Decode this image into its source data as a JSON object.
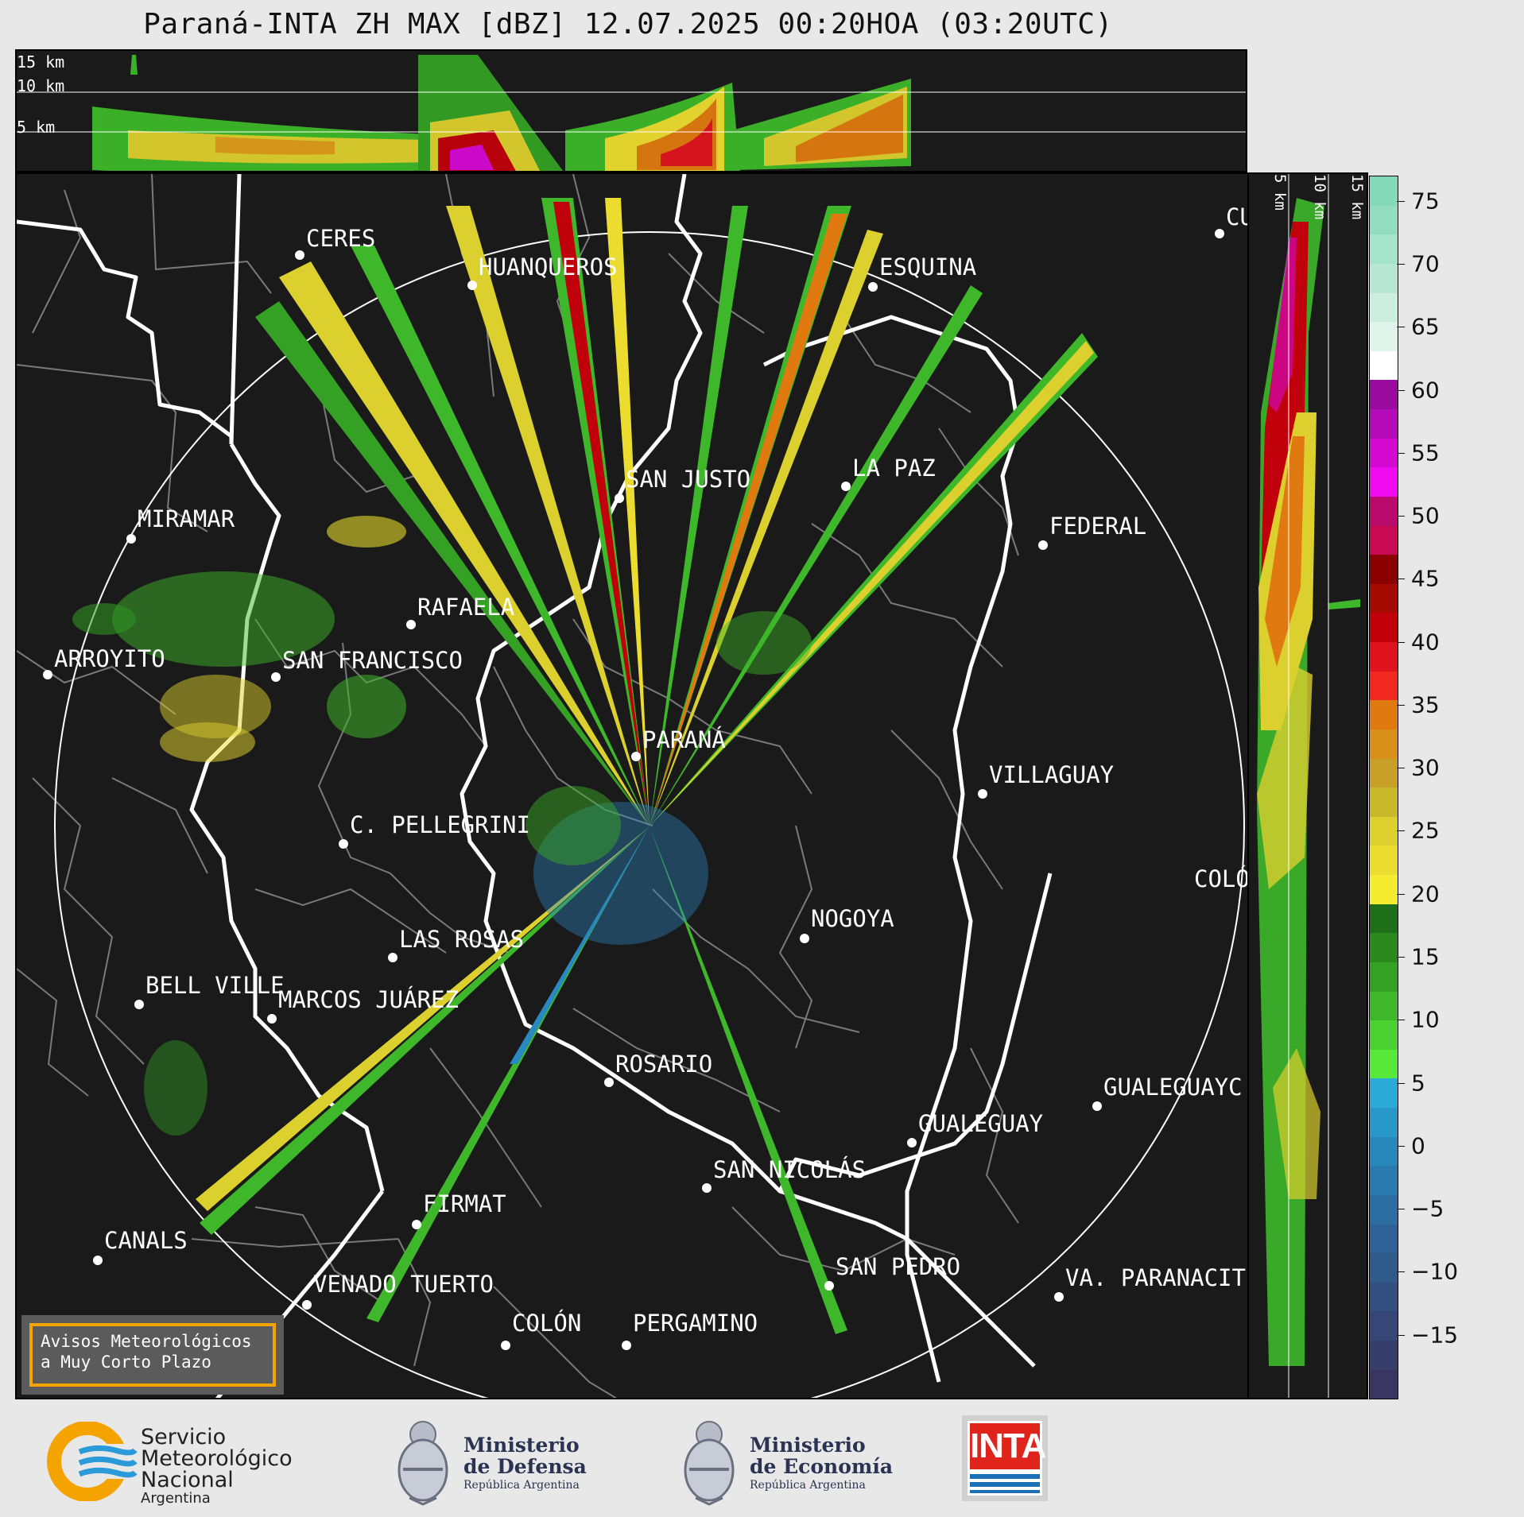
{
  "title": "Paraná-INTA ZH MAX [dBZ] 12.07.2025 00:20HOA (03:20UTC)",
  "top_panel": {
    "altitude_labels": [
      "15 km",
      "10 km",
      "5 km"
    ]
  },
  "side_panel": {
    "altitude_labels": [
      "5 km",
      "10 km",
      "15 km"
    ]
  },
  "colorbar": {
    "unit": "dBZ",
    "ticks": [
      "75",
      "70",
      "65",
      "60",
      "55",
      "50",
      "45",
      "40",
      "35",
      "30",
      "25",
      "20",
      "15",
      "10",
      "5",
      "0",
      "−5",
      "−10",
      "−15"
    ],
    "tick_values": [
      75,
      70,
      65,
      60,
      55,
      50,
      45,
      40,
      35,
      30,
      25,
      20,
      15,
      10,
      5,
      0,
      -5,
      -10,
      -15
    ],
    "range": [
      -20,
      77
    ],
    "colors_top_to_bottom": [
      "#84d9b8",
      "#92ddc0",
      "#a5e3cb",
      "#b8e8d5",
      "#cbeee0",
      "#dff4ea",
      "#ffffff",
      "#9a0a9e",
      "#b40ab8",
      "#d40ad2",
      "#f00aee",
      "#b80a6a",
      "#c80a52",
      "#8a0000",
      "#a40a00",
      "#c0000a",
      "#e0141e",
      "#f0281e",
      "#e07a10",
      "#d8901a",
      "#c8a028",
      "#c8b82a",
      "#dcd02e",
      "#ecdc30",
      "#f4ec30",
      "#1f6e1a",
      "#2a8a1e",
      "#34a024",
      "#3eb82a",
      "#4ad030",
      "#58e838",
      "#2aaad8",
      "#2898c8",
      "#2888ba",
      "#2a7aae",
      "#2c6ea2",
      "#2e6296",
      "#305a8a",
      "#334f80",
      "#364676",
      "#383e6c",
      "#3a3664"
    ]
  },
  "cities": [
    {
      "name": "CERES"
    },
    {
      "name": "HUANQUEROS"
    },
    {
      "name": "ESQUINA"
    },
    {
      "name": "CU"
    },
    {
      "name": "SAN JUSTO"
    },
    {
      "name": "LA PAZ"
    },
    {
      "name": "MIRAMAR"
    },
    {
      "name": "FEDERAL"
    },
    {
      "name": "RAFAELA"
    },
    {
      "name": "ARROYITO"
    },
    {
      "name": "SAN FRANCISCO"
    },
    {
      "name": "PARANÁ"
    },
    {
      "name": "VILLAGUAY"
    },
    {
      "name": "C. PELLEGRINI"
    },
    {
      "name": "COLÓ"
    },
    {
      "name": "NOGOYA"
    },
    {
      "name": "LAS ROSAS"
    },
    {
      "name": "BELL VILLE"
    },
    {
      "name": "MARCOS JUÁREZ"
    },
    {
      "name": "ROSARIO"
    },
    {
      "name": "GUALEGUAYC"
    },
    {
      "name": "GUALEGUAY"
    },
    {
      "name": "SAN NICOLÁS"
    },
    {
      "name": "FIRMAT"
    },
    {
      "name": "CANALS"
    },
    {
      "name": "SAN PEDRO"
    },
    {
      "name": "VENADO TUERTO"
    },
    {
      "name": "VA. PARANACIT"
    },
    {
      "name": "COLÓN"
    },
    {
      "name": "PERGAMINO"
    }
  ],
  "warning_box": {
    "line1": "Avisos Meteorológicos",
    "line2": "a Muy Corto Plazo",
    "border_color": "#f5a300"
  },
  "logos": {
    "smn": {
      "line1": "Servicio",
      "line2": "Meteorológico",
      "line3": "Nacional",
      "line4": "Argentina"
    },
    "defensa": {
      "line1": "Ministerio",
      "line2": "de Defensa",
      "line3": "República Argentina"
    },
    "economia": {
      "line1": "Ministerio",
      "line2": "de Economía",
      "line3": "República Argentina"
    },
    "inta": {
      "text": "INTA"
    }
  }
}
